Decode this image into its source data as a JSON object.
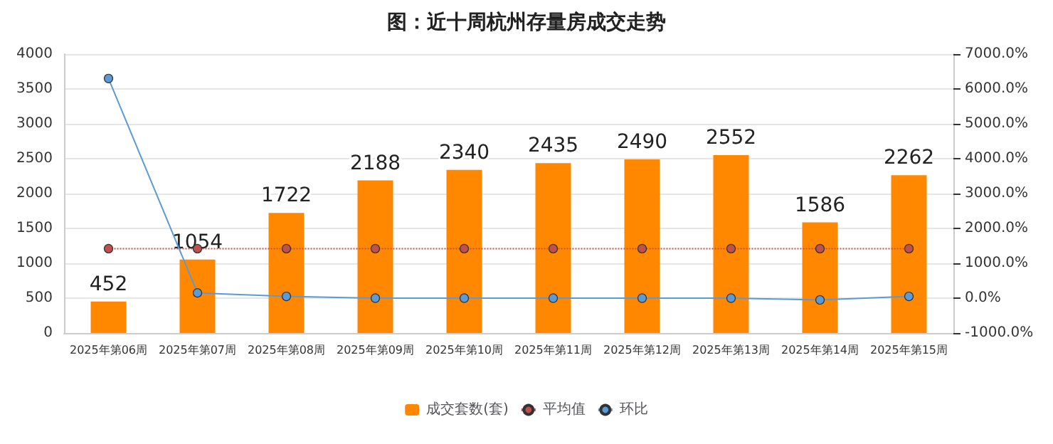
{
  "chart_data": {
    "type": "bar",
    "title": "图：近十周杭州存量房成交走势",
    "categories": [
      "2025年第06周",
      "2025年第07周",
      "2025年第08周",
      "2025年第09周",
      "2025年第10周",
      "2025年第11周",
      "2025年第12周",
      "2025年第13周",
      "2025年第14周",
      "2025年第15周"
    ],
    "series": [
      {
        "name": "成交套数(套)",
        "color": "#ff8800",
        "values": [
          452,
          1054,
          1722,
          2188,
          2340,
          2435,
          2490,
          2552,
          1586,
          2262
        ],
        "value_labels": [
          "452",
          "1054",
          "1722",
          "2188",
          "2340",
          "2435",
          "2490",
          "2552",
          "1586",
          "2262"
        ]
      },
      {
        "name": "平均值",
        "type": "line",
        "color": "#c0504d",
        "line_style": "dotted",
        "values": [
          1210,
          1210,
          1210,
          1210,
          1210,
          1210,
          1210,
          1210,
          1210,
          1210
        ]
      },
      {
        "name": "环比",
        "type": "line",
        "color": "#5b9bd5",
        "axis": "y2",
        "line_style": "solid",
        "values": [
          6300,
          150,
          50,
          0,
          0,
          0,
          0,
          0,
          -50,
          50
        ]
      }
    ],
    "ylim": [
      0,
      4000
    ],
    "yticks": [
      0,
      500,
      1000,
      1500,
      2000,
      2500,
      3000,
      3500,
      4000
    ],
    "y2lim": [
      -1000,
      7000
    ],
    "y2ticks": [
      {
        "value": -1000,
        "label": "-1000.0%"
      },
      {
        "value": 0,
        "label": "0.0%"
      },
      {
        "value": 1000,
        "label": "1000.0%"
      },
      {
        "value": 2000,
        "label": "2000.0%"
      },
      {
        "value": 3000,
        "label": "3000.0%"
      },
      {
        "value": 4000,
        "label": "4000.0%"
      },
      {
        "value": 5000,
        "label": "5000.0%"
      },
      {
        "value": 6000,
        "label": "6000.0%"
      },
      {
        "value": 7000,
        "label": "7000.0%"
      }
    ],
    "grid": "y",
    "legend": "bottom",
    "marker": "circle"
  }
}
